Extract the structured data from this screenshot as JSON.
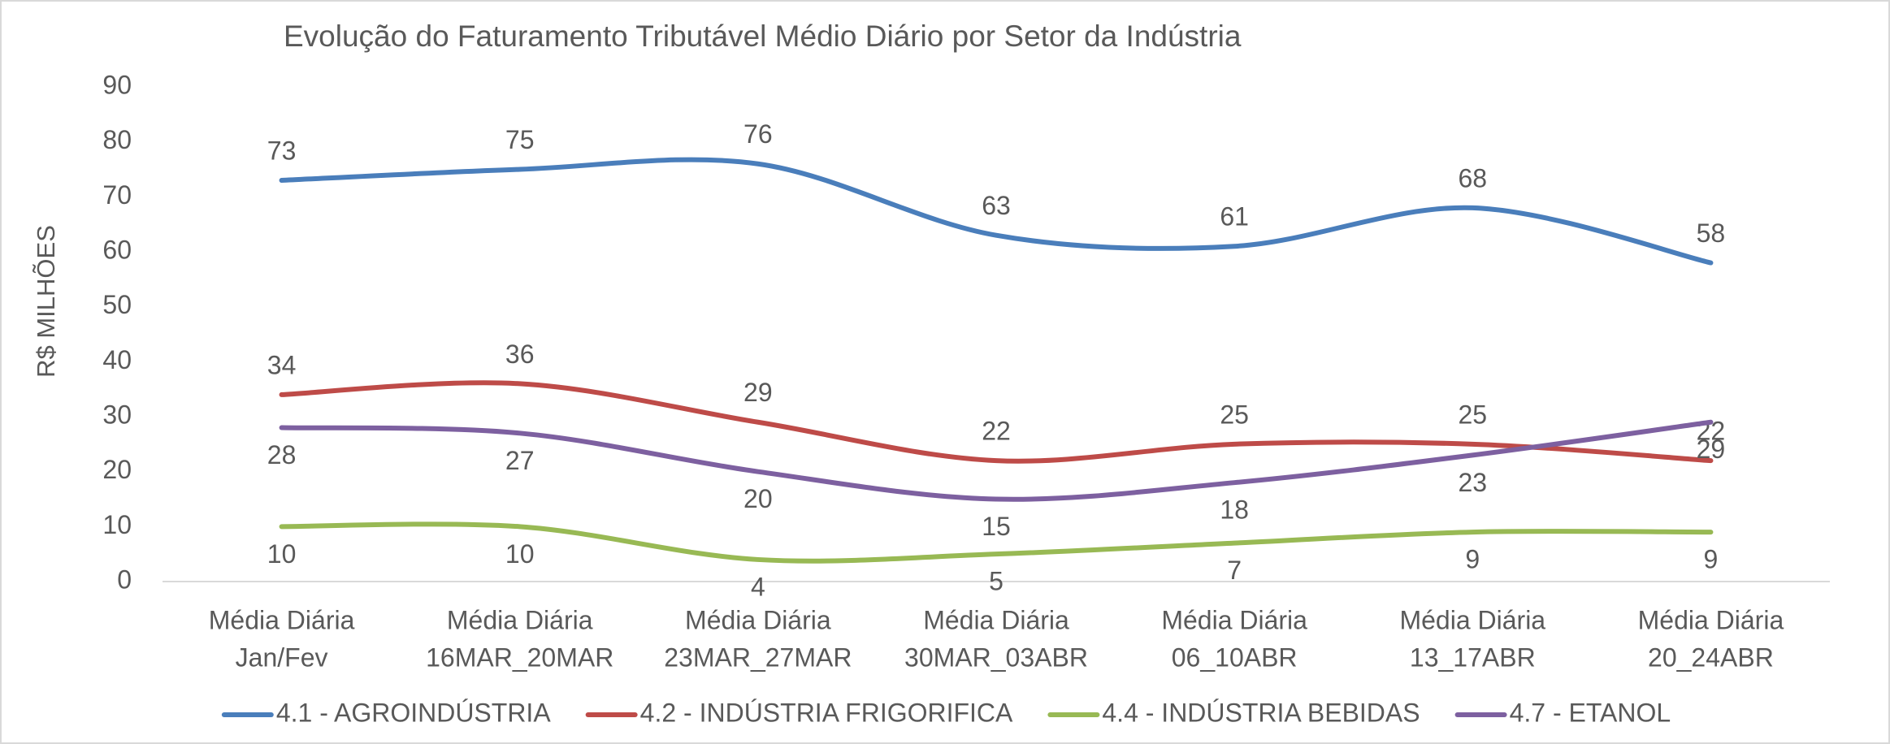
{
  "chart_data": {
    "type": "line",
    "title": "Evolução do Faturamento Tributável Médio Diário por Setor da Indústria",
    "y_label": "R$ MILHÕES",
    "categories": [
      [
        "Média Diária",
        "Jan/Fev"
      ],
      [
        "Média Diária",
        "16MAR_20MAR"
      ],
      [
        "Média Diária",
        "23MAR_27MAR"
      ],
      [
        "Média Diária",
        "30MAR_03ABR"
      ],
      [
        "Média Diária",
        "06_10ABR"
      ],
      [
        "Média Diária",
        "13_17ABR"
      ],
      [
        "Média Diária",
        "20_24ABR"
      ]
    ],
    "series": [
      {
        "name": "4.1 - AGROINDÚSTRIA",
        "color": "#4a7ebb",
        "values": [
          73,
          75,
          76,
          63,
          61,
          68,
          58
        ],
        "label_position": "above"
      },
      {
        "name": "4.2 - INDÚSTRIA FRIGORIFICA",
        "color": "#be4b48",
        "values": [
          34,
          36,
          29,
          22,
          25,
          25,
          22
        ],
        "label_position": "above"
      },
      {
        "name": "4.4 - INDÚSTRIA BEBIDAS",
        "color": "#98b954",
        "values": [
          10,
          10,
          4,
          5,
          7,
          9,
          9
        ],
        "label_position": "below"
      },
      {
        "name": "4.7 - ETANOL",
        "color": "#7d60a0",
        "values": [
          28,
          27,
          20,
          15,
          18,
          23,
          29
        ],
        "label_position": "below"
      }
    ],
    "ylim": [
      0,
      90
    ],
    "yticks": [
      0,
      10,
      20,
      30,
      40,
      50,
      60,
      70,
      80,
      90
    ],
    "grid": false,
    "smooth": true,
    "legend": "bottom"
  }
}
